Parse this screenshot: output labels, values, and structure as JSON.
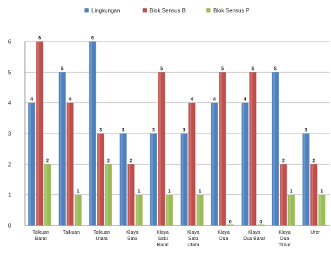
{
  "chart_data": {
    "type": "bar",
    "title": "",
    "xlabel": "",
    "ylabel": "",
    "ylim": [
      0,
      6
    ],
    "yticks": [
      0,
      1,
      2,
      3,
      4,
      5,
      6
    ],
    "grid": true,
    "legend_position": "top",
    "categories": [
      [
        "Talkuan",
        "Barat"
      ],
      [
        "Talkuan"
      ],
      [
        "Talkuan",
        "Utara"
      ],
      [
        "Klaya",
        "Satu"
      ],
      [
        "Klaya",
        "Satu",
        "Barat"
      ],
      [
        "Klaya",
        "Satu",
        "Utara"
      ],
      [
        "Klaya",
        "Dua"
      ],
      [
        "Klaya",
        "Dua Barat"
      ],
      [
        "Klaya",
        "Dua",
        "Timur"
      ],
      [
        "Urer"
      ]
    ],
    "series": [
      {
        "name": "Lingkungan",
        "color": "#4f81bd",
        "values": [
          4,
          5,
          6,
          3,
          3,
          3,
          4,
          4,
          5,
          3
        ]
      },
      {
        "name": "Blok Sensus B",
        "color": "#c0504d",
        "values": [
          6,
          4,
          3,
          2,
          5,
          4,
          5,
          5,
          2,
          2
        ]
      },
      {
        "name": "Blok Sensus P",
        "color": "#9bbb59",
        "values": [
          2,
          1,
          2,
          1,
          1,
          1,
          0,
          0,
          1,
          1
        ]
      }
    ]
  }
}
